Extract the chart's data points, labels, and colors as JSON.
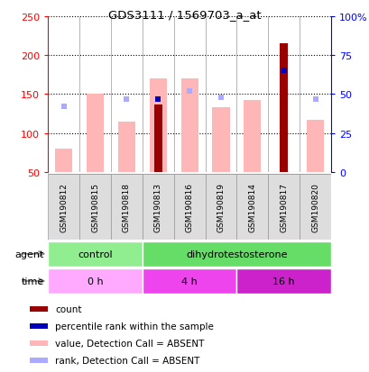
{
  "title": "GDS3111 / 1569703_a_at",
  "samples": [
    "GSM190812",
    "GSM190815",
    "GSM190818",
    "GSM190813",
    "GSM190816",
    "GSM190819",
    "GSM190814",
    "GSM190817",
    "GSM190820"
  ],
  "count_values": [
    null,
    null,
    null,
    137,
    null,
    null,
    null,
    215,
    null
  ],
  "percentile_rank_vals": [
    null,
    null,
    null,
    47,
    null,
    null,
    null,
    65,
    null
  ],
  "absent_value": [
    80,
    150,
    115,
    170,
    170,
    133,
    142,
    null,
    117
  ],
  "absent_rank": [
    42,
    null,
    47,
    null,
    52,
    48,
    null,
    null,
    47
  ],
  "ylim_left": [
    50,
    250
  ],
  "ylim_right": [
    0,
    100
  ],
  "left_ticks": [
    50,
    100,
    150,
    200,
    250
  ],
  "right_ticks": [
    0,
    25,
    50,
    75,
    100
  ],
  "right_tick_labels": [
    "0",
    "25",
    "50",
    "75",
    "100%"
  ],
  "agent_groups": [
    {
      "label": "control",
      "start": 0,
      "end": 3,
      "color": "#90EE90"
    },
    {
      "label": "dihydrotestosterone",
      "start": 3,
      "end": 9,
      "color": "#66DD66"
    }
  ],
  "time_colors": [
    "#FFAAFF",
    "#EE44EE",
    "#CC22CC"
  ],
  "time_groups": [
    {
      "label": "0 h",
      "start": 0,
      "end": 3
    },
    {
      "label": "4 h",
      "start": 3,
      "end": 6
    },
    {
      "label": "16 h",
      "start": 6,
      "end": 9
    }
  ],
  "color_count": "#990000",
  "color_percentile": "#0000BB",
  "color_absent_value": "#FFB6B6",
  "color_absent_rank": "#AAAAFF",
  "legend_items": [
    {
      "label": "count",
      "color": "#990000"
    },
    {
      "label": "percentile rank within the sample",
      "color": "#0000BB"
    },
    {
      "label": "value, Detection Call = ABSENT",
      "color": "#FFB6B6"
    },
    {
      "label": "rank, Detection Call = ABSENT",
      "color": "#AAAAFF"
    }
  ]
}
